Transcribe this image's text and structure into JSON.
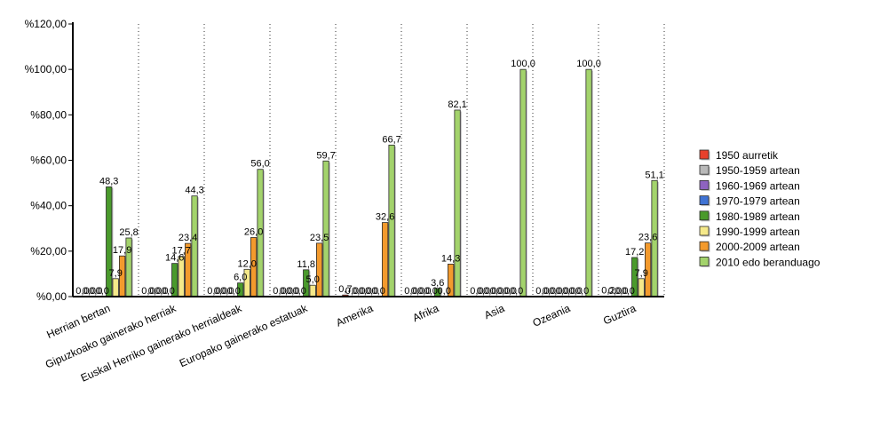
{
  "chart_data": {
    "type": "bar",
    "ylim": [
      0,
      120
    ],
    "yticks": [
      "%0,00",
      "%20,00",
      "%40,00",
      "%60,00",
      "%80,00",
      "%100,00",
      "%120,00"
    ],
    "categories": [
      "Herrian bertan",
      "Gipuzkoako gainerako herriak",
      "Euskal Herriko gainerako herrialdeak",
      "Europako gainerako estatuak",
      "Amerika",
      "Afrika",
      "Asia",
      "Ozeania",
      "Guztira"
    ],
    "series": [
      {
        "name": "1950 aurretik",
        "color": "#e8412c",
        "values": [
          0.0,
          0.0,
          0.0,
          0.0,
          0.7,
          0.0,
          0.0,
          0.0,
          0.2
        ],
        "labels": [
          "0,0",
          "0,0",
          "0,0",
          "0,0",
          "0,7",
          "0,0",
          "0,0",
          "0,0",
          "0,2"
        ]
      },
      {
        "name": "1950-1959 artean",
        "color": "#b9b9b9",
        "values": [
          0.0,
          0.0,
          0.0,
          0.0,
          0.0,
          0.0,
          0.0,
          0.0,
          0.0
        ],
        "labels": [
          "0,0",
          "0,0",
          "0,0",
          "0,0",
          "0,0",
          "0,0",
          "0,0",
          "0,0",
          "0,0"
        ]
      },
      {
        "name": "1960-1969 artean",
        "color": "#8e63c0",
        "values": [
          0.0,
          0.0,
          0.0,
          0.0,
          0.0,
          0.0,
          0.0,
          0.0,
          0.0
        ],
        "labels": [
          "0,0",
          "0,0",
          "0,0",
          "0,0",
          "0,0",
          "0,0",
          "0,0",
          "0,0",
          "0,0"
        ]
      },
      {
        "name": "1970-1979 artean",
        "color": "#3f73d4",
        "values": [
          0.0,
          0.0,
          0.0,
          0.0,
          0.0,
          0.0,
          0.0,
          0.0,
          0.0
        ],
        "labels": [
          "0,0",
          "0,0",
          "0,0",
          "0,0",
          "0,0",
          "0,0",
          "0,0",
          "0,0",
          "0,0"
        ]
      },
      {
        "name": "1980-1989 artean",
        "color": "#4a9a2c",
        "values": [
          48.3,
          14.6,
          6.0,
          11.8,
          0.0,
          3.6,
          0.0,
          0.0,
          17.2
        ],
        "labels": [
          "48,3",
          "14,6",
          "6,0",
          "11,8",
          "0,0",
          "3,6",
          "0,0",
          "0,0",
          "17,2"
        ]
      },
      {
        "name": "1990-1999 artean",
        "color": "#f5e98a",
        "values": [
          7.9,
          17.7,
          12.0,
          5.0,
          0.0,
          0.0,
          0.0,
          0.0,
          7.9
        ],
        "labels": [
          "7,9",
          "17,7",
          "12,0",
          "5,0",
          "0,0",
          "0,0",
          "0,0",
          "0,0",
          "7,9"
        ]
      },
      {
        "name": "2000-2009 artean",
        "color": "#f39a2d",
        "values": [
          17.9,
          23.4,
          26.0,
          23.5,
          32.6,
          14.3,
          0.0,
          0.0,
          23.6
        ],
        "labels": [
          "17,9",
          "23,4",
          "26,0",
          "23,5",
          "32,6",
          "14,3",
          "0,0",
          "0,0",
          "23,6"
        ]
      },
      {
        "name": "2010 edo beranduago",
        "color": "#a3d36c",
        "values": [
          25.8,
          44.3,
          56.0,
          59.7,
          66.7,
          82.1,
          100.0,
          100.0,
          51.1
        ],
        "labels": [
          "25,8",
          "44,3",
          "56,0",
          "59,7",
          "66,7",
          "82,1",
          "100,0",
          "100,0",
          "51,1"
        ]
      }
    ],
    "legend_position": "right",
    "grid": "vertical dotted"
  }
}
